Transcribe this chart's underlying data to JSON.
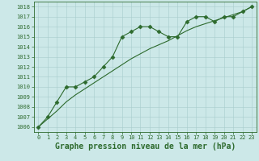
{
  "line1_x": [
    0,
    1,
    2,
    3,
    4,
    5,
    6,
    7,
    8,
    9,
    10,
    11,
    12,
    13,
    14,
    15,
    16,
    17,
    18,
    19,
    20,
    21,
    22,
    23
  ],
  "line1_y": [
    1006,
    1007,
    1008.5,
    1010,
    1010,
    1010.5,
    1011,
    1012,
    1013,
    1015,
    1015.5,
    1016,
    1016,
    1015.5,
    1015,
    1015,
    1016.5,
    1017,
    1017,
    1016.5,
    1017,
    1017,
    1017.5,
    1018
  ],
  "line2_x": [
    0,
    1,
    2,
    3,
    4,
    5,
    6,
    7,
    8,
    9,
    10,
    11,
    12,
    13,
    14,
    15,
    16,
    17,
    18,
    19,
    20,
    21,
    22,
    23
  ],
  "line2_y": [
    1006,
    1006.8,
    1007.6,
    1008.5,
    1009.2,
    1009.8,
    1010.4,
    1011.0,
    1011.6,
    1012.2,
    1012.8,
    1013.3,
    1013.8,
    1014.2,
    1014.6,
    1015.1,
    1015.6,
    1016.0,
    1016.3,
    1016.6,
    1016.9,
    1017.2,
    1017.5,
    1018
  ],
  "line_color": "#2d6a2d",
  "marker": "D",
  "marker_size": 2.5,
  "bg_color": "#cce8e8",
  "grid_color": "#a8cccc",
  "xlabel": "Graphe pression niveau de la mer (hPa)",
  "xlabel_fontsize": 7,
  "ylabel_ticks": [
    1006,
    1007,
    1008,
    1009,
    1010,
    1011,
    1012,
    1013,
    1014,
    1015,
    1016,
    1017,
    1018
  ],
  "xlim": [
    -0.5,
    23.5
  ],
  "ylim": [
    1005.5,
    1018.5
  ],
  "xticks": [
    0,
    1,
    2,
    3,
    4,
    5,
    6,
    7,
    8,
    9,
    10,
    11,
    12,
    13,
    14,
    15,
    16,
    17,
    18,
    19,
    20,
    21,
    22,
    23
  ],
  "tick_fontsize": 5.0,
  "linewidth": 0.8
}
